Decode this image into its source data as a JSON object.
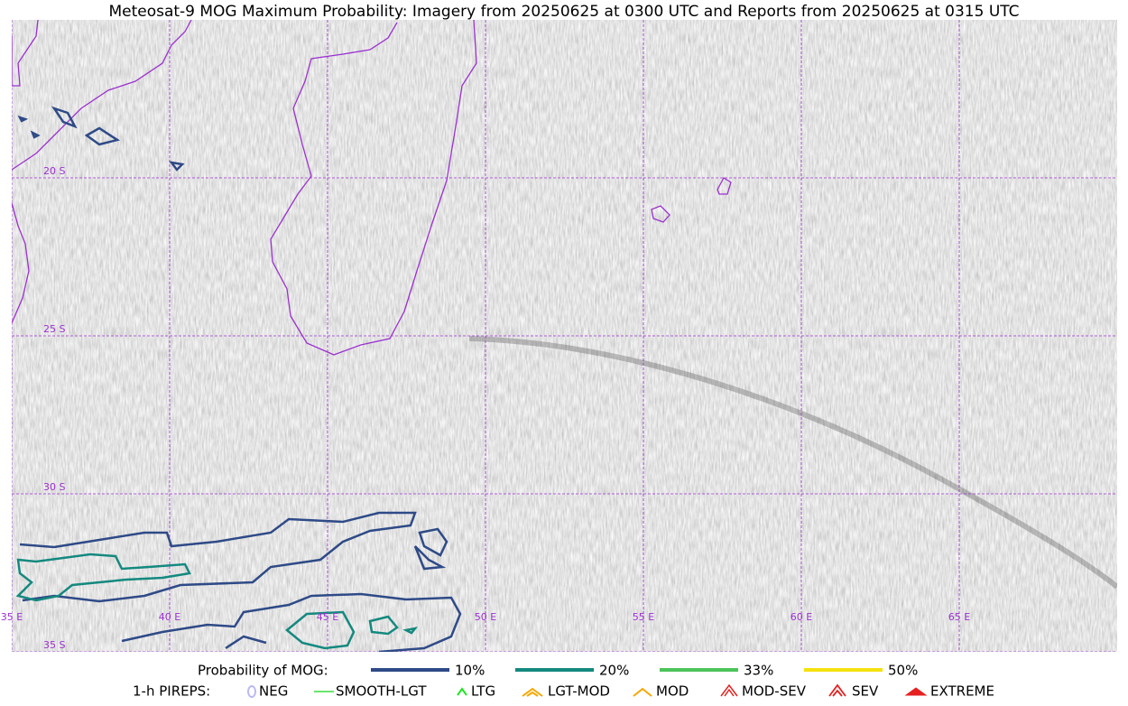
{
  "title": "Meteosat-9 MOG Maximum Probability: Imagery from 20250625 at 0300 UTC and Reports from 20250625 at 0315 UTC",
  "map": {
    "lat_labels": [
      "20 S",
      "25 S",
      "30 S",
      "35 S"
    ],
    "lon_labels": [
      "35 E",
      "40 E",
      "45 E",
      "50 E",
      "55 E",
      "60 E",
      "65 E"
    ]
  },
  "legend": {
    "probability": {
      "label": "Probability of MOG:",
      "items": [
        {
          "label": "10%",
          "color": "#2e4a87"
        },
        {
          "label": "20%",
          "color": "#14897f"
        },
        {
          "label": "33%",
          "color": "#4cc35a"
        },
        {
          "label": "50%",
          "color": "#f5e10d"
        }
      ]
    },
    "pireps": {
      "label": "1-h PIREPS:",
      "items": [
        {
          "label": "NEG",
          "color": "#b9b9f5"
        },
        {
          "label": "SMOOTH-LGT",
          "color": "#3cdc3c"
        },
        {
          "label": "LTG",
          "color": "#1ee61e"
        },
        {
          "label": "LGT-MOD",
          "color": "#f5a800"
        },
        {
          "label": "MOD",
          "color": "#f5a800"
        },
        {
          "label": "MOD-SEV",
          "color": "#e62020"
        },
        {
          "label": "SEV",
          "color": "#e62020"
        },
        {
          "label": "EXTREME",
          "color": "#e62020"
        }
      ]
    }
  }
}
